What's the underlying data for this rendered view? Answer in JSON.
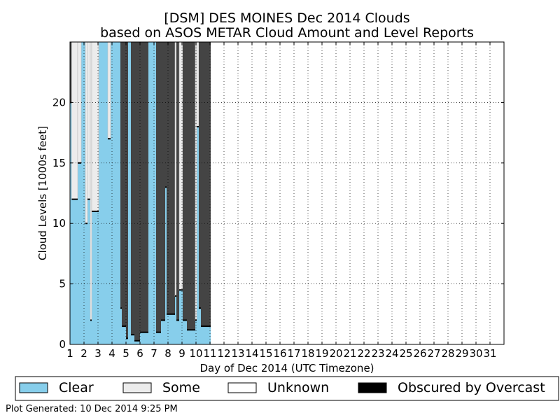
{
  "chart_data": {
    "type": "area",
    "title": "[DSM] DES MOINES Dec 2014 Clouds",
    "subtitle": "based on ASOS METAR Cloud Amount and Level Reports",
    "xlabel": "Day of Dec 2014 (UTC Timezone)",
    "ylabel": "Cloud Levels [1000s feet]",
    "xlim": [
      1,
      32
    ],
    "ylim": [
      0,
      25
    ],
    "x_ticks": [
      "1",
      "2",
      "3",
      "4",
      "5",
      "6",
      "7",
      "8",
      "9",
      "10",
      "11",
      "12",
      "13",
      "14",
      "15",
      "16",
      "17",
      "18",
      "19",
      "20",
      "21",
      "22",
      "23",
      "24",
      "25",
      "26",
      "27",
      "28",
      "29",
      "30",
      "31"
    ],
    "y_ticks": [
      0,
      5,
      10,
      15,
      20
    ],
    "grid": true,
    "legend_position": "bottom",
    "series": [
      {
        "name": "Clear",
        "color": "#87ceeb"
      },
      {
        "name": "Some",
        "color": "#ececec"
      },
      {
        "name": "Unknown",
        "color": "#ffffff"
      },
      {
        "name": "Obscured by Overcast",
        "color": "#000000"
      }
    ],
    "overcast_fill_color": "#444444",
    "data_end_day": 11.05,
    "segments": [
      {
        "x0": 1.0,
        "x1": 1.12,
        "cover": "overcast",
        "base": 20.0
      },
      {
        "x0": 1.12,
        "x1": 1.55,
        "cover": "some",
        "base": 12.0
      },
      {
        "x0": 1.55,
        "x1": 1.8,
        "cover": "some",
        "base": 15.0
      },
      {
        "x0": 1.8,
        "x1": 2.1,
        "cover": "clear",
        "base": 25
      },
      {
        "x0": 2.1,
        "x1": 2.25,
        "cover": "some",
        "base": 10.0
      },
      {
        "x0": 2.25,
        "x1": 2.45,
        "cover": "some",
        "base": 12.0
      },
      {
        "x0": 2.45,
        "x1": 2.55,
        "cover": "some",
        "base": 2.0
      },
      {
        "x0": 2.55,
        "x1": 3.05,
        "cover": "some",
        "base": 11.0
      },
      {
        "x0": 3.05,
        "x1": 3.7,
        "cover": "clear",
        "base": 25
      },
      {
        "x0": 3.7,
        "x1": 3.9,
        "cover": "some",
        "base": 17.0
      },
      {
        "x0": 3.9,
        "x1": 4.6,
        "cover": "clear",
        "base": 25
      },
      {
        "x0": 4.6,
        "x1": 4.7,
        "cover": "overcast",
        "base": 3.0
      },
      {
        "x0": 4.7,
        "x1": 5.0,
        "cover": "overcast",
        "base": 1.5
      },
      {
        "x0": 5.0,
        "x1": 5.15,
        "cover": "overcast",
        "base": 0.5
      },
      {
        "x0": 5.15,
        "x1": 5.35,
        "cover": "clear",
        "base": 25
      },
      {
        "x0": 5.35,
        "x1": 5.6,
        "cover": "overcast",
        "base": 0.8
      },
      {
        "x0": 5.6,
        "x1": 6.0,
        "cover": "overcast",
        "base": 0.3
      },
      {
        "x0": 6.0,
        "x1": 6.6,
        "cover": "overcast",
        "base": 1.0
      },
      {
        "x0": 6.6,
        "x1": 7.15,
        "cover": "clear",
        "base": 25
      },
      {
        "x0": 7.15,
        "x1": 7.5,
        "cover": "overcast",
        "base": 1.0
      },
      {
        "x0": 7.5,
        "x1": 7.8,
        "cover": "overcast",
        "base": 2.0
      },
      {
        "x0": 7.8,
        "x1": 7.9,
        "cover": "overcast",
        "base": 13.0
      },
      {
        "x0": 7.9,
        "x1": 8.5,
        "cover": "overcast",
        "base": 2.5
      },
      {
        "x0": 8.5,
        "x1": 8.6,
        "cover": "some",
        "base": 4.0
      },
      {
        "x0": 8.6,
        "x1": 8.8,
        "cover": "overcast",
        "base": 2.0
      },
      {
        "x0": 8.8,
        "x1": 9.05,
        "cover": "some",
        "base": 4.5
      },
      {
        "x0": 9.05,
        "x1": 9.35,
        "cover": "overcast",
        "base": 2.0
      },
      {
        "x0": 9.35,
        "x1": 9.95,
        "cover": "overcast",
        "base": 1.2
      },
      {
        "x0": 9.95,
        "x1": 10.05,
        "cover": "some",
        "base": 2.0
      },
      {
        "x0": 10.05,
        "x1": 10.2,
        "cover": "some",
        "base": 18.0
      },
      {
        "x0": 10.2,
        "x1": 10.35,
        "cover": "overcast",
        "base": 3.0
      },
      {
        "x0": 10.35,
        "x1": 11.05,
        "cover": "overcast",
        "base": 1.5
      }
    ]
  },
  "legend": {
    "items": [
      {
        "label": "Clear",
        "color": "#87ceeb"
      },
      {
        "label": "Some",
        "color": "#ececec"
      },
      {
        "label": "Unknown",
        "color": "#ffffff"
      },
      {
        "label": "Obscured by Overcast",
        "color": "#000000"
      }
    ]
  },
  "footer": {
    "generated": "Plot Generated: 10 Dec 2014 9:25 PM"
  }
}
